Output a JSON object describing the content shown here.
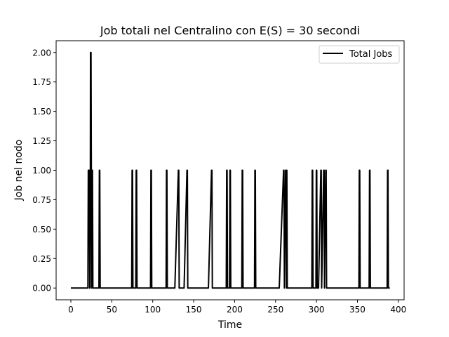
{
  "chart_data": {
    "type": "line",
    "title": "Job totali nel Centralino con E(S) = 30 secondi",
    "xlabel": "Time",
    "ylabel": "Job nel nodo",
    "xlim": [
      -18,
      407
    ],
    "ylim": [
      -0.1,
      2.1
    ],
    "xticks": [
      0,
      50,
      100,
      150,
      200,
      250,
      300,
      350,
      400
    ],
    "xtick_labels": [
      "0",
      "50",
      "100",
      "150",
      "200",
      "250",
      "300",
      "350",
      "400"
    ],
    "yticks": [
      0.0,
      0.25,
      0.5,
      0.75,
      1.0,
      1.25,
      1.5,
      1.75,
      2.0
    ],
    "ytick_labels": [
      "0.00",
      "0.25",
      "0.50",
      "0.75",
      "1.00",
      "1.25",
      "1.50",
      "1.75",
      "2.00"
    ],
    "grid": false,
    "legend_position": "top-right",
    "series": [
      {
        "name": "Total Jobs",
        "color": "#000000",
        "points": [
          [
            0,
            0
          ],
          [
            20.8,
            0
          ],
          [
            21.3,
            1
          ],
          [
            22.4,
            1
          ],
          [
            22.9,
            0
          ],
          [
            23.3,
            0
          ],
          [
            23.8,
            1
          ],
          [
            24.0,
            2
          ],
          [
            24.6,
            2
          ],
          [
            25.0,
            1
          ],
          [
            25.4,
            0
          ],
          [
            25.9,
            1
          ],
          [
            26.4,
            1
          ],
          [
            26.9,
            0
          ],
          [
            34.3,
            0
          ],
          [
            34.8,
            1
          ],
          [
            35.3,
            1
          ],
          [
            35.8,
            0
          ],
          [
            74.3,
            0
          ],
          [
            74.8,
            1
          ],
          [
            75.3,
            1
          ],
          [
            75.8,
            0
          ],
          [
            79.3,
            0
          ],
          [
            79.8,
            1
          ],
          [
            80.3,
            1
          ],
          [
            80.8,
            0
          ],
          [
            97.3,
            0
          ],
          [
            97.8,
            1
          ],
          [
            98.3,
            1
          ],
          [
            98.8,
            0
          ],
          [
            116.3,
            0
          ],
          [
            116.8,
            1
          ],
          [
            117.3,
            1
          ],
          [
            117.8,
            0
          ],
          [
            127.0,
            0
          ],
          [
            131.3,
            1
          ],
          [
            131.8,
            1
          ],
          [
            132.3,
            0
          ],
          [
            138.3,
            0
          ],
          [
            141.8,
            1
          ],
          [
            142.3,
            1
          ],
          [
            142.8,
            0
          ],
          [
            168.0,
            0
          ],
          [
            171.8,
            1
          ],
          [
            172.3,
            1
          ],
          [
            172.8,
            0
          ],
          [
            189.8,
            0
          ],
          [
            190.3,
            1
          ],
          [
            190.8,
            1
          ],
          [
            191.3,
            0
          ],
          [
            193.8,
            0
          ],
          [
            194.3,
            1
          ],
          [
            194.8,
            1
          ],
          [
            195.3,
            0
          ],
          [
            208.8,
            0
          ],
          [
            209.3,
            1
          ],
          [
            209.8,
            1
          ],
          [
            210.3,
            0
          ],
          [
            224.3,
            0
          ],
          [
            224.8,
            1
          ],
          [
            225.3,
            1
          ],
          [
            225.8,
            0
          ],
          [
            254.5,
            0
          ],
          [
            259.8,
            1
          ],
          [
            260.3,
            1
          ],
          [
            260.8,
            0
          ],
          [
            262.3,
            1
          ],
          [
            262.8,
            1
          ],
          [
            263.3,
            0
          ],
          [
            263.8,
            1
          ],
          [
            264.3,
            0
          ],
          [
            294.3,
            0
          ],
          [
            294.8,
            1
          ],
          [
            295.3,
            1
          ],
          [
            295.8,
            0
          ],
          [
            299.3,
            0
          ],
          [
            299.8,
            1
          ],
          [
            300.3,
            1
          ],
          [
            300.8,
            0
          ],
          [
            302.5,
            0
          ],
          [
            305.3,
            1
          ],
          [
            305.8,
            1
          ],
          [
            306.3,
            0
          ],
          [
            308.8,
            1
          ],
          [
            309.3,
            1
          ],
          [
            309.8,
            0
          ],
          [
            311.3,
            1
          ],
          [
            311.8,
            1
          ],
          [
            312.3,
            0
          ],
          [
            351.8,
            0
          ],
          [
            352.3,
            1
          ],
          [
            352.8,
            1
          ],
          [
            353.3,
            0
          ],
          [
            364.3,
            0
          ],
          [
            364.8,
            1
          ],
          [
            365.3,
            1
          ],
          [
            365.8,
            0
          ],
          [
            386.3,
            0
          ],
          [
            386.8,
            1
          ],
          [
            387.3,
            1
          ],
          [
            387.8,
            0
          ],
          [
            389.5,
            0
          ]
        ]
      }
    ]
  }
}
